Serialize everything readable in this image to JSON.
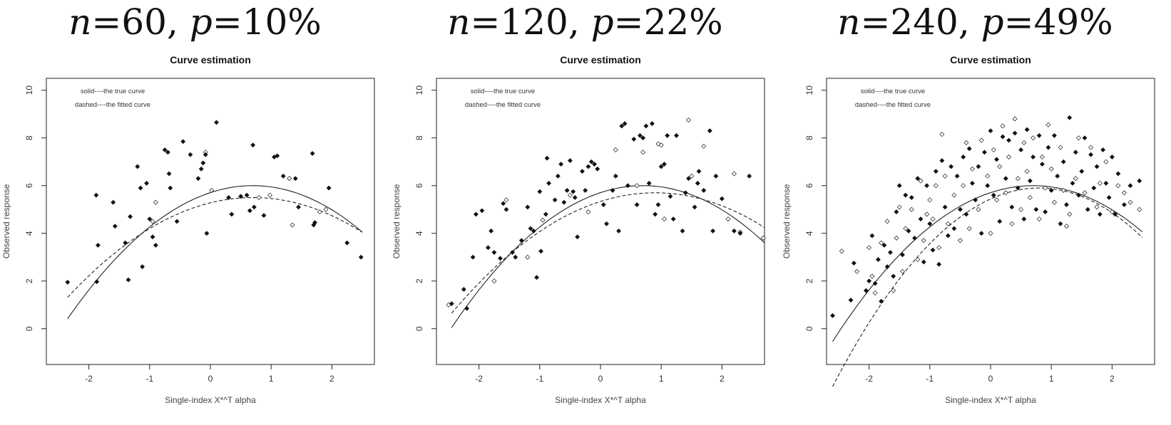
{
  "chart_data": [
    {
      "type": "scatter",
      "heading_n": "60",
      "heading_p": "10%",
      "title": "Curve estimation",
      "xlabel": "Single-index X*^T alpha",
      "ylabel": "Observed response",
      "xlim": [
        -2.7,
        2.7
      ],
      "ylim": [
        -1.5,
        10.5
      ],
      "xticks": [
        -2,
        -1,
        0,
        1,
        2
      ],
      "yticks": [
        0,
        2,
        4,
        6,
        8,
        10
      ],
      "legend": [
        "solid----the true curve",
        "dashed----the fitted curve"
      ],
      "legend_position": "top-left",
      "x_range": [
        -2.35,
        2.5
      ],
      "true_curve": {
        "a": 6.0,
        "b": 0.7,
        "c": 0.6
      },
      "fitted_curve": {
        "a": 5.5,
        "b": 0.7,
        "c": 0.45
      },
      "observed_points": [
        [
          -2.35,
          1.95
        ],
        [
          -1.87,
          1.97
        ],
        [
          -1.85,
          3.5
        ],
        [
          -1.88,
          5.6
        ],
        [
          -1.6,
          5.3
        ],
        [
          -1.57,
          4.3
        ],
        [
          -1.4,
          3.6
        ],
        [
          -1.35,
          2.05
        ],
        [
          -1.32,
          4.7
        ],
        [
          -1.2,
          6.8
        ],
        [
          -1.15,
          5.9
        ],
        [
          -1.12,
          2.6
        ],
        [
          -1.05,
          6.1
        ],
        [
          -1.0,
          4.6
        ],
        [
          -0.95,
          3.85
        ],
        [
          -0.9,
          3.5
        ],
        [
          -0.75,
          7.5
        ],
        [
          -0.7,
          7.4
        ],
        [
          -0.68,
          6.5
        ],
        [
          -0.66,
          5.9
        ],
        [
          -0.55,
          4.5
        ],
        [
          -0.45,
          7.85
        ],
        [
          -0.33,
          7.3
        ],
        [
          -0.2,
          6.3
        ],
        [
          -0.15,
          6.7
        ],
        [
          -0.12,
          6.95
        ],
        [
          -0.08,
          7.3
        ],
        [
          -0.06,
          4.0
        ],
        [
          0.1,
          8.65
        ],
        [
          0.3,
          5.5
        ],
        [
          0.35,
          4.8
        ],
        [
          0.5,
          5.55
        ],
        [
          0.6,
          5.6
        ],
        [
          0.65,
          4.95
        ],
        [
          0.7,
          7.7
        ],
        [
          0.72,
          5.1
        ],
        [
          0.88,
          4.75
        ],
        [
          1.05,
          7.2
        ],
        [
          1.1,
          7.25
        ],
        [
          1.2,
          6.4
        ],
        [
          1.4,
          6.3
        ],
        [
          1.45,
          5.1
        ],
        [
          1.68,
          7.35
        ],
        [
          1.7,
          4.35
        ],
        [
          1.72,
          4.45
        ],
        [
          1.95,
          5.9
        ],
        [
          2.25,
          3.6
        ],
        [
          2.48,
          3.0
        ]
      ],
      "missing_points": [
        [
          -0.95,
          4.5
        ],
        [
          -0.9,
          5.3
        ],
        [
          -0.08,
          7.4
        ],
        [
          0.02,
          5.8
        ],
        [
          0.8,
          5.5
        ],
        [
          0.98,
          5.6
        ],
        [
          1.3,
          6.3
        ],
        [
          1.35,
          4.35
        ],
        [
          1.8,
          4.9
        ],
        [
          1.9,
          5.0
        ]
      ]
    },
    {
      "type": "scatter",
      "heading_n": "120",
      "heading_p": "22%",
      "title": "Curve estimation",
      "xlabel": "Single-index X*^T alpha",
      "ylabel": "Observed response",
      "xlim": [
        -2.7,
        2.7
      ],
      "ylim": [
        -1.5,
        10.5
      ],
      "xticks": [
        -2,
        -1,
        0,
        1,
        2
      ],
      "yticks": [
        0,
        2,
        4,
        6,
        8,
        10
      ],
      "legend": [
        "solid----the true curve",
        "dashed----the fitted curve"
      ],
      "legend_position": "top-left",
      "x_range": [
        -2.45,
        2.7
      ],
      "true_curve": {
        "a": 6.0,
        "b": 0.7,
        "c": 0.6
      },
      "fitted_curve": {
        "a": 5.7,
        "b": 0.9,
        "c": 0.45
      },
      "observed_points": [
        [
          -2.45,
          1.05
        ],
        [
          -2.2,
          0.85
        ],
        [
          -2.25,
          1.65
        ],
        [
          -2.1,
          3.0
        ],
        [
          -2.05,
          4.8
        ],
        [
          -1.95,
          4.95
        ],
        [
          -1.85,
          3.4
        ],
        [
          -1.8,
          4.1
        ],
        [
          -1.75,
          3.2
        ],
        [
          -1.65,
          2.95
        ],
        [
          -1.6,
          5.25
        ],
        [
          -1.55,
          5.0
        ],
        [
          -1.45,
          3.2
        ],
        [
          -1.4,
          3.0
        ],
        [
          -1.3,
          3.7
        ],
        [
          -1.2,
          5.1
        ],
        [
          -1.15,
          4.2
        ],
        [
          -1.1,
          4.1
        ],
        [
          -1.05,
          2.15
        ],
        [
          -1.0,
          5.75
        ],
        [
          -0.98,
          3.25
        ],
        [
          -0.9,
          4.8
        ],
        [
          -0.88,
          7.15
        ],
        [
          -0.85,
          6.1
        ],
        [
          -0.75,
          5.4
        ],
        [
          -0.7,
          6.4
        ],
        [
          -0.65,
          6.9
        ],
        [
          -0.6,
          5.3
        ],
        [
          -0.55,
          5.8
        ],
        [
          -0.5,
          7.05
        ],
        [
          -0.45,
          5.75
        ],
        [
          -0.42,
          5.5
        ],
        [
          -0.38,
          3.85
        ],
        [
          -0.3,
          6.6
        ],
        [
          -0.25,
          5.8
        ],
        [
          -0.2,
          6.8
        ],
        [
          -0.15,
          7.0
        ],
        [
          -0.1,
          6.9
        ],
        [
          -0.05,
          6.7
        ],
        [
          0.05,
          5.2
        ],
        [
          0.1,
          4.4
        ],
        [
          0.2,
          5.8
        ],
        [
          0.25,
          6.4
        ],
        [
          0.3,
          4.1
        ],
        [
          0.35,
          8.5
        ],
        [
          0.4,
          8.6
        ],
        [
          0.45,
          6.0
        ],
        [
          0.55,
          7.95
        ],
        [
          0.6,
          5.2
        ],
        [
          0.65,
          8.1
        ],
        [
          0.7,
          8.0
        ],
        [
          0.75,
          8.5
        ],
        [
          0.8,
          6.1
        ],
        [
          0.85,
          8.6
        ],
        [
          0.9,
          4.8
        ],
        [
          0.95,
          5.2
        ],
        [
          1.0,
          6.8
        ],
        [
          1.05,
          6.9
        ],
        [
          1.1,
          8.1
        ],
        [
          1.15,
          5.55
        ],
        [
          1.2,
          4.6
        ],
        [
          1.25,
          8.1
        ],
        [
          1.35,
          4.1
        ],
        [
          1.4,
          5.7
        ],
        [
          1.45,
          6.3
        ],
        [
          1.55,
          5.1
        ],
        [
          1.6,
          6.1
        ],
        [
          1.62,
          6.6
        ],
        [
          1.7,
          5.8
        ],
        [
          1.8,
          8.3
        ],
        [
          1.85,
          4.1
        ],
        [
          1.9,
          6.4
        ],
        [
          2.0,
          5.45
        ],
        [
          2.2,
          4.1
        ],
        [
          2.3,
          4.0
        ],
        [
          2.45,
          6.4
        ]
      ],
      "missing_points": [
        [
          -2.5,
          1.0
        ],
        [
          -1.75,
          2.0
        ],
        [
          -1.55,
          5.4
        ],
        [
          -1.2,
          3.0
        ],
        [
          -0.95,
          4.55
        ],
        [
          -0.5,
          5.6
        ],
        [
          -0.2,
          4.9
        ],
        [
          0.25,
          7.5
        ],
        [
          0.6,
          6.0
        ],
        [
          0.7,
          7.4
        ],
        [
          0.95,
          7.75
        ],
        [
          1.0,
          7.7
        ],
        [
          1.05,
          4.6
        ],
        [
          1.45,
          8.75
        ],
        [
          1.5,
          6.4
        ],
        [
          1.7,
          7.65
        ],
        [
          2.1,
          4.6
        ],
        [
          2.2,
          6.5
        ],
        [
          2.3,
          4.05
        ],
        [
          2.68,
          3.8
        ]
      ]
    },
    {
      "type": "scatter",
      "heading_n": "240",
      "heading_p": "49%",
      "title": "Curve estimation",
      "xlabel": "Single-index X*^T alpha",
      "ylabel": "Observed response",
      "xlim": [
        -2.7,
        2.7
      ],
      "ylim": [
        -1.5,
        10.5
      ],
      "xticks": [
        -2,
        -1,
        0,
        1,
        2
      ],
      "yticks": [
        0,
        2,
        4,
        6,
        8,
        10
      ],
      "legend": [
        "solid----the true curve",
        "dashed----the fitted curve"
      ],
      "legend_position": "top-left",
      "x_range": [
        -2.6,
        2.5
      ],
      "true_curve": {
        "a": 6.0,
        "b": 0.7,
        "c": 0.6
      },
      "fitted_curve": {
        "a": 5.9,
        "b": 0.8,
        "c": 0.72
      },
      "observed_points": [
        [
          -2.6,
          0.55
        ],
        [
          -2.3,
          1.2
        ],
        [
          -2.25,
          2.75
        ],
        [
          -2.05,
          1.6
        ],
        [
          -2.0,
          2.0
        ],
        [
          -1.95,
          3.9
        ],
        [
          -1.9,
          1.9
        ],
        [
          -1.85,
          2.9
        ],
        [
          -1.8,
          1.15
        ],
        [
          -1.75,
          3.5
        ],
        [
          -1.7,
          2.6
        ],
        [
          -1.65,
          3.2
        ],
        [
          -1.6,
          2.2
        ],
        [
          -1.55,
          4.9
        ],
        [
          -1.5,
          6.0
        ],
        [
          -1.45,
          3.1
        ],
        [
          -1.4,
          5.6
        ],
        [
          -1.35,
          4.1
        ],
        [
          -1.3,
          5.5
        ],
        [
          -1.25,
          3.8
        ],
        [
          -1.2,
          6.3
        ],
        [
          -1.15,
          4.6
        ],
        [
          -1.1,
          2.8
        ],
        [
          -1.05,
          6.0
        ],
        [
          -1.0,
          4.4
        ],
        [
          -0.95,
          3.3
        ],
        [
          -0.9,
          6.6
        ],
        [
          -0.85,
          2.7
        ],
        [
          -0.8,
          7.05
        ],
        [
          -0.75,
          5.1
        ],
        [
          -0.7,
          3.9
        ],
        [
          -0.65,
          6.8
        ],
        [
          -0.6,
          4.2
        ],
        [
          -0.55,
          6.4
        ],
        [
          -0.5,
          5.0
        ],
        [
          -0.45,
          7.2
        ],
        [
          -0.4,
          4.8
        ],
        [
          -0.35,
          7.55
        ],
        [
          -0.3,
          6.1
        ],
        [
          -0.25,
          5.4
        ],
        [
          -0.2,
          6.8
        ],
        [
          -0.15,
          4.0
        ],
        [
          -0.1,
          7.4
        ],
        [
          -0.05,
          6.0
        ],
        [
          0.0,
          8.3
        ],
        [
          0.05,
          5.6
        ],
        [
          0.1,
          7.1
        ],
        [
          0.15,
          4.5
        ],
        [
          0.2,
          8.05
        ],
        [
          0.25,
          6.3
        ],
        [
          0.3,
          7.9
        ],
        [
          0.35,
          5.1
        ],
        [
          0.4,
          8.2
        ],
        [
          0.45,
          5.9
        ],
        [
          0.5,
          7.5
        ],
        [
          0.55,
          4.6
        ],
        [
          0.6,
          8.35
        ],
        [
          0.65,
          6.2
        ],
        [
          0.7,
          7.2
        ],
        [
          0.75,
          5.0
        ],
        [
          0.8,
          8.1
        ],
        [
          0.85,
          6.9
        ],
        [
          0.9,
          4.9
        ],
        [
          0.95,
          7.6
        ],
        [
          1.0,
          5.8
        ],
        [
          1.05,
          8.1
        ],
        [
          1.1,
          6.4
        ],
        [
          1.15,
          4.4
        ],
        [
          1.2,
          7.0
        ],
        [
          1.25,
          5.2
        ],
        [
          1.3,
          8.85
        ],
        [
          1.35,
          6.1
        ],
        [
          1.4,
          7.4
        ],
        [
          1.45,
          5.6
        ],
        [
          1.5,
          6.6
        ],
        [
          1.55,
          8.0
        ],
        [
          1.6,
          5.0
        ],
        [
          1.65,
          7.3
        ],
        [
          1.7,
          5.9
        ],
        [
          1.75,
          6.8
        ],
        [
          1.8,
          4.8
        ],
        [
          1.85,
          7.5
        ],
        [
          1.9,
          6.1
        ],
        [
          1.95,
          5.5
        ],
        [
          2.0,
          7.2
        ],
        [
          2.05,
          4.8
        ],
        [
          2.1,
          6.5
        ],
        [
          2.2,
          5.2
        ],
        [
          2.3,
          6.0
        ],
        [
          2.45,
          6.2
        ]
      ],
      "missing_points": [
        [
          -2.45,
          3.25
        ],
        [
          -2.2,
          2.4
        ],
        [
          -2.0,
          3.4
        ],
        [
          -1.95,
          2.2
        ],
        [
          -1.9,
          1.5
        ],
        [
          -1.8,
          3.6
        ],
        [
          -1.7,
          4.5
        ],
        [
          -1.6,
          1.6
        ],
        [
          -1.55,
          3.8
        ],
        [
          -1.5,
          5.1
        ],
        [
          -1.45,
          2.4
        ],
        [
          -1.4,
          4.2
        ],
        [
          -1.3,
          5.0
        ],
        [
          -1.2,
          2.9
        ],
        [
          -1.15,
          6.2
        ],
        [
          -1.1,
          3.7
        ],
        [
          -1.05,
          4.8
        ],
        [
          -0.95,
          4.6
        ],
        [
          -0.9,
          6.0
        ],
        [
          -0.85,
          3.4
        ],
        [
          -0.8,
          8.15
        ],
        [
          -0.75,
          6.4
        ],
        [
          -0.7,
          4.4
        ],
        [
          -0.6,
          5.6
        ],
        [
          -0.5,
          3.7
        ],
        [
          -0.45,
          6.0
        ],
        [
          -0.4,
          7.8
        ],
        [
          -0.35,
          4.2
        ],
        [
          -0.3,
          6.7
        ],
        [
          -0.2,
          5.0
        ],
        [
          -0.15,
          7.9
        ],
        [
          -0.05,
          6.4
        ],
        [
          0.0,
          4.0
        ],
        [
          0.05,
          7.5
        ],
        [
          0.1,
          5.4
        ],
        [
          0.15,
          6.8
        ],
        [
          0.2,
          8.5
        ],
        [
          0.25,
          5.7
        ],
        [
          0.3,
          7.2
        ],
        [
          0.35,
          4.4
        ],
        [
          0.4,
          8.8
        ],
        [
          0.45,
          6.3
        ],
        [
          0.5,
          5.0
        ],
        [
          0.55,
          7.8
        ],
        [
          0.65,
          5.5
        ],
        [
          0.7,
          8.0
        ],
        [
          0.8,
          4.6
        ],
        [
          0.85,
          7.2
        ],
        [
          0.9,
          5.9
        ],
        [
          0.95,
          8.55
        ],
        [
          1.0,
          6.7
        ],
        [
          1.05,
          5.3
        ],
        [
          1.15,
          7.6
        ],
        [
          1.2,
          5.8
        ],
        [
          1.3,
          4.8
        ],
        [
          1.4,
          6.3
        ],
        [
          1.45,
          8.0
        ],
        [
          1.55,
          5.7
        ],
        [
          1.65,
          7.6
        ],
        [
          1.75,
          5.1
        ],
        [
          1.8,
          6.1
        ],
        [
          1.9,
          7.0
        ],
        [
          2.0,
          4.9
        ],
        [
          2.1,
          6.0
        ],
        [
          2.2,
          5.7
        ],
        [
          2.3,
          5.3
        ],
        [
          2.45,
          5.0
        ],
        [
          -1.0,
          5.4
        ],
        [
          0.6,
          6.6
        ],
        [
          1.25,
          4.3
        ]
      ]
    }
  ]
}
